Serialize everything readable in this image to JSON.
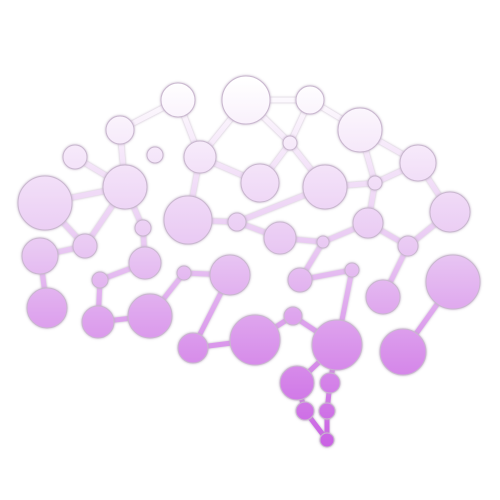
{
  "colors": {
    "background": "#ffffff",
    "gradient_top": "#ffffff",
    "gradient_mid": "#e9c9f3",
    "gradient_bottom": "#c95fe3",
    "outline": "#c9b7cf"
  },
  "icon": "brain-network-icon"
}
